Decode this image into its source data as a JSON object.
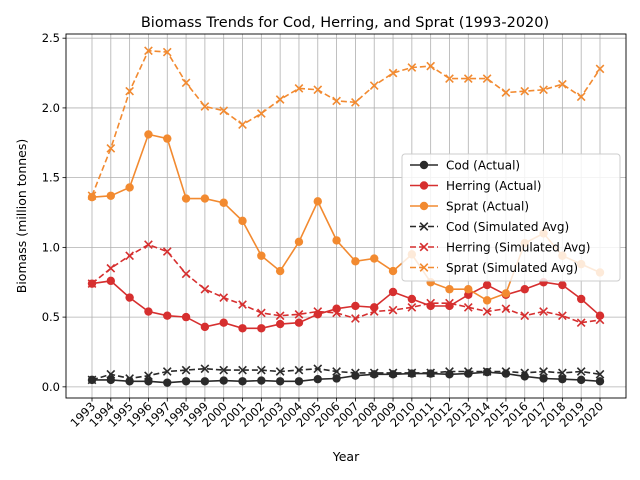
{
  "chart_data": {
    "type": "line",
    "title": "Biomass Trends for Cod, Herring, and Sprat (1993-2020)",
    "xlabel": "Year",
    "ylabel": "Biomass (million tonnes)",
    "ylim": [
      -0.08,
      2.53
    ],
    "yticks": [
      0.0,
      0.5,
      1.0,
      1.5,
      2.0,
      2.5
    ],
    "ytick_labels": [
      "0.0",
      "0.5",
      "1.0",
      "1.5",
      "2.0",
      "2.5"
    ],
    "grid": true,
    "legend_position": "center-right",
    "x": [
      "1993",
      "1994",
      "1995",
      "1996",
      "1997",
      "1998",
      "1999",
      "2000",
      "2001",
      "2002",
      "2003",
      "2004",
      "2005",
      "2006",
      "2007",
      "2008",
      "2009",
      "2010",
      "2011",
      "2012",
      "2013",
      "2014",
      "2015",
      "2016",
      "2017",
      "2018",
      "2019",
      "2020"
    ],
    "series": [
      {
        "name": "Cod (Actual)",
        "color": "#2a2a2a",
        "style": "solid",
        "marker": "circle",
        "values": [
          0.05,
          0.05,
          0.04,
          0.04,
          0.03,
          0.04,
          0.04,
          0.045,
          0.04,
          0.045,
          0.04,
          0.04,
          0.055,
          0.06,
          0.08,
          0.09,
          0.09,
          0.095,
          0.095,
          0.09,
          0.095,
          0.105,
          0.095,
          0.075,
          0.06,
          0.055,
          0.05,
          0.04
        ]
      },
      {
        "name": "Herring (Actual)",
        "color": "#d62f2f",
        "style": "solid",
        "marker": "circle",
        "values": [
          0.74,
          0.76,
          0.64,
          0.54,
          0.51,
          0.5,
          0.43,
          0.46,
          0.42,
          0.42,
          0.45,
          0.46,
          0.52,
          0.56,
          0.58,
          0.57,
          0.68,
          0.63,
          0.58,
          0.58,
          0.66,
          0.73,
          0.66,
          0.7,
          0.75,
          0.73,
          0.63,
          0.51
        ]
      },
      {
        "name": "Sprat (Actual)",
        "color": "#f28a30",
        "style": "solid",
        "marker": "circle",
        "values": [
          1.36,
          1.37,
          1.43,
          1.81,
          1.78,
          1.35,
          1.35,
          1.32,
          1.19,
          0.94,
          0.83,
          1.04,
          1.33,
          1.05,
          0.9,
          0.92,
          0.83,
          0.95,
          0.75,
          0.7,
          0.7,
          0.62,
          0.67,
          1.03,
          1.1,
          0.94,
          0.88,
          0.82
        ]
      },
      {
        "name": "Cod (Simulated Avg)",
        "color": "#2a2a2a",
        "style": "dashed",
        "marker": "x",
        "values": [
          0.05,
          0.09,
          0.06,
          0.08,
          0.11,
          0.12,
          0.13,
          0.12,
          0.12,
          0.12,
          0.11,
          0.12,
          0.13,
          0.11,
          0.1,
          0.1,
          0.1,
          0.1,
          0.1,
          0.11,
          0.11,
          0.11,
          0.11,
          0.1,
          0.11,
          0.1,
          0.11,
          0.09
        ]
      },
      {
        "name": "Herring (Simulated Avg)",
        "color": "#d62f2f",
        "style": "dashed",
        "marker": "x",
        "values": [
          0.74,
          0.85,
          0.94,
          1.02,
          0.97,
          0.81,
          0.7,
          0.64,
          0.59,
          0.53,
          0.51,
          0.52,
          0.54,
          0.53,
          0.49,
          0.54,
          0.55,
          0.57,
          0.6,
          0.6,
          0.57,
          0.54,
          0.56,
          0.51,
          0.54,
          0.51,
          0.46,
          0.48
        ]
      },
      {
        "name": "Sprat (Simulated Avg)",
        "color": "#f28a30",
        "style": "dashed",
        "marker": "x",
        "values": [
          1.37,
          1.71,
          2.12,
          2.41,
          2.4,
          2.18,
          2.01,
          1.98,
          1.88,
          1.96,
          2.06,
          2.14,
          2.13,
          2.05,
          2.04,
          2.16,
          2.25,
          2.29,
          2.3,
          2.21,
          2.21,
          2.21,
          2.11,
          2.12,
          2.13,
          2.17,
          2.08,
          2.28
        ]
      }
    ]
  }
}
